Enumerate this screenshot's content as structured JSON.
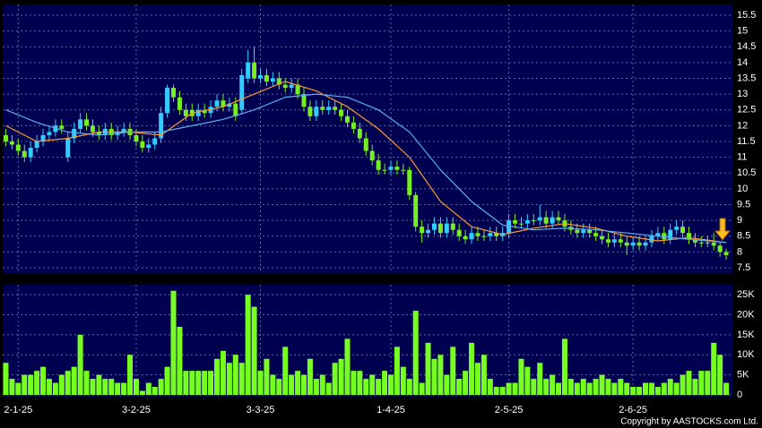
{
  "chart_data": [
    {
      "type": "candlestick",
      "open": [
        11.7,
        11.5,
        11.4,
        11.2,
        11.0,
        11.3,
        11.5,
        11.7,
        11.8,
        12.0,
        11.0,
        11.6,
        11.9,
        12.2,
        12.0,
        11.8,
        11.7,
        11.9,
        11.7,
        11.8,
        11.9,
        11.7,
        11.5,
        11.3,
        11.4,
        11.6,
        12.4,
        13.2,
        12.9,
        12.5,
        12.5,
        12.3,
        12.5,
        12.4,
        12.6,
        12.8,
        12.6,
        12.7,
        12.5,
        13.5,
        14.0,
        13.5,
        13.6,
        13.4,
        13.5,
        13.3,
        13.2,
        13.3,
        13.0,
        12.6,
        12.3,
        12.6,
        12.5,
        12.6,
        12.5,
        12.3,
        12.1,
        11.9,
        11.6,
        11.2,
        10.9,
        10.6,
        10.6,
        10.7,
        10.6,
        10.6,
        9.8,
        8.8,
        8.6,
        8.7,
        8.9,
        8.6,
        8.9,
        8.7,
        8.5,
        8.4,
        8.6,
        8.5,
        8.5,
        8.6,
        8.5,
        8.6,
        9.0,
        8.9,
        8.9,
        9.0,
        9.0,
        9.1,
        8.9,
        9.1,
        9.0,
        8.8,
        8.7,
        8.6,
        8.7,
        8.6,
        8.5,
        8.4,
        8.3,
        8.4,
        8.3,
        8.2,
        8.3,
        8.2,
        8.3,
        8.5,
        8.6,
        8.4,
        8.7,
        8.8,
        8.6,
        8.4,
        8.3,
        8.3,
        8.3,
        8.2,
        8.0
      ],
      "high": [
        11.9,
        11.7,
        11.6,
        11.4,
        11.5,
        11.7,
        11.9,
        12.0,
        12.2,
        12.2,
        11.8,
        12.1,
        12.4,
        12.4,
        12.2,
        12.0,
        12.1,
        12.1,
        12.0,
        12.1,
        12.1,
        11.9,
        11.7,
        11.6,
        11.8,
        12.6,
        13.3,
        13.3,
        13.1,
        12.7,
        12.7,
        12.7,
        12.7,
        12.8,
        13.0,
        13.0,
        12.9,
        12.9,
        13.8,
        14.4,
        14.5,
        13.8,
        13.8,
        13.7,
        13.7,
        13.5,
        13.5,
        13.5,
        13.2,
        12.8,
        12.8,
        12.8,
        12.8,
        12.8,
        12.7,
        12.5,
        12.3,
        12.1,
        11.8,
        11.4,
        11.1,
        10.8,
        10.9,
        10.9,
        10.8,
        10.7,
        9.9,
        9.0,
        8.9,
        9.1,
        9.1,
        9.1,
        9.1,
        8.9,
        8.7,
        8.8,
        8.8,
        8.7,
        8.8,
        8.8,
        8.8,
        9.2,
        9.2,
        9.1,
        9.2,
        9.2,
        9.5,
        9.3,
        9.3,
        9.3,
        9.2,
        9.0,
        8.9,
        8.9,
        8.9,
        8.8,
        8.7,
        8.6,
        8.6,
        8.6,
        8.5,
        8.5,
        8.5,
        8.5,
        8.7,
        8.8,
        8.8,
        8.9,
        9.0,
        9.0,
        8.8,
        8.6,
        8.5,
        8.5,
        8.6,
        8.3,
        8.1
      ],
      "low": [
        11.35,
        11.25,
        11.05,
        10.85,
        10.85,
        11.15,
        11.35,
        11.55,
        11.65,
        11.75,
        10.85,
        11.45,
        11.75,
        11.85,
        11.65,
        11.55,
        11.55,
        11.55,
        11.55,
        11.65,
        11.55,
        11.35,
        11.15,
        11.15,
        11.25,
        11.45,
        12.25,
        12.75,
        12.35,
        12.15,
        12.15,
        12.15,
        12.25,
        12.25,
        12.45,
        12.45,
        12.45,
        12.15,
        12.35,
        13.35,
        13.35,
        13.35,
        13.25,
        13.25,
        13.15,
        13.05,
        13.05,
        12.85,
        12.45,
        12.15,
        12.15,
        12.35,
        12.35,
        12.35,
        12.15,
        11.95,
        11.75,
        11.45,
        11.05,
        10.75,
        10.45,
        10.45,
        10.45,
        10.45,
        10.45,
        9.65,
        8.65,
        8.3,
        8.45,
        8.55,
        8.45,
        8.45,
        8.55,
        8.35,
        8.25,
        8.25,
        8.35,
        8.35,
        8.35,
        8.35,
        8.35,
        8.45,
        8.75,
        8.75,
        8.75,
        8.85,
        8.85,
        8.75,
        8.75,
        8.85,
        8.65,
        8.55,
        8.45,
        8.45,
        8.45,
        8.35,
        8.25,
        8.15,
        8.15,
        8.15,
        7.9,
        8.05,
        8.05,
        8.05,
        8.15,
        8.35,
        8.25,
        8.25,
        8.55,
        8.45,
        8.25,
        8.15,
        8.15,
        8.15,
        8.05,
        7.85,
        7.75
      ],
      "close": [
        11.5,
        11.4,
        11.2,
        11.0,
        11.3,
        11.5,
        11.7,
        11.8,
        12.0,
        11.9,
        11.6,
        11.9,
        12.2,
        12.0,
        11.8,
        11.7,
        11.9,
        11.7,
        11.8,
        11.9,
        11.7,
        11.5,
        11.3,
        11.4,
        11.6,
        12.4,
        13.2,
        12.9,
        12.5,
        12.3,
        12.3,
        12.5,
        12.4,
        12.6,
        12.8,
        12.6,
        12.7,
        12.3,
        13.6,
        14.0,
        13.5,
        13.6,
        13.4,
        13.5,
        13.3,
        13.2,
        13.3,
        13.0,
        12.6,
        12.3,
        12.6,
        12.5,
        12.6,
        12.5,
        12.3,
        12.1,
        11.9,
        11.6,
        11.2,
        10.9,
        10.6,
        10.6,
        10.7,
        10.6,
        10.6,
        9.8,
        8.8,
        8.6,
        8.7,
        8.9,
        8.6,
        8.9,
        8.7,
        8.5,
        8.4,
        8.6,
        8.5,
        8.5,
        8.6,
        8.5,
        8.6,
        9.0,
        8.9,
        8.9,
        9.0,
        9.0,
        9.1,
        8.9,
        9.1,
        9.0,
        8.8,
        8.7,
        8.6,
        8.7,
        8.6,
        8.5,
        8.4,
        8.3,
        8.4,
        8.3,
        8.2,
        8.3,
        8.2,
        8.3,
        8.5,
        8.6,
        8.4,
        8.7,
        8.8,
        8.6,
        8.4,
        8.3,
        8.3,
        8.3,
        8.2,
        8.0,
        7.9
      ],
      "up_color": "#33ccff",
      "down_color": "#77ee22",
      "lines": [
        {
          "color": "#ff9933",
          "x": [
            0,
            5,
            10,
            15,
            20,
            25,
            30,
            35,
            40,
            45,
            50,
            55,
            60,
            65,
            70,
            75,
            80,
            85,
            90,
            95,
            100,
            105,
            110,
            116
          ],
          "values": [
            12.0,
            11.5,
            11.6,
            11.8,
            11.8,
            11.7,
            12.4,
            12.6,
            13.0,
            13.4,
            13.1,
            12.6,
            11.9,
            11.0,
            9.6,
            8.8,
            8.55,
            8.75,
            8.9,
            8.75,
            8.5,
            8.35,
            8.45,
            8.3
          ]
        },
        {
          "color": "#5aaef0",
          "x": [
            0,
            5,
            10,
            15,
            20,
            25,
            30,
            35,
            40,
            45,
            50,
            55,
            60,
            65,
            70,
            75,
            80,
            85,
            90,
            95,
            100,
            105,
            110,
            116
          ],
          "values": [
            12.5,
            12.1,
            11.8,
            11.7,
            11.8,
            11.8,
            12.0,
            12.2,
            12.5,
            12.9,
            13.0,
            12.9,
            12.5,
            11.8,
            10.6,
            9.6,
            8.85,
            8.7,
            8.75,
            8.7,
            8.6,
            8.5,
            8.4,
            8.3
          ]
        }
      ],
      "xlim": [
        -0.5,
        117
      ],
      "ylim": [
        7.33,
        15.84
      ],
      "yticks": [
        7.5,
        8,
        8.5,
        9,
        9.5,
        10,
        10.5,
        11,
        11.5,
        12,
        12.5,
        13,
        13.5,
        14,
        14.5,
        15,
        15.5
      ],
      "grid": true
    },
    {
      "type": "bar",
      "values": [
        8000,
        4000,
        3000,
        5000,
        5000,
        6000,
        7000,
        4000,
        3000,
        5000,
        6000,
        7000,
        15000,
        6000,
        4000,
        5000,
        4000,
        4000,
        3000,
        3000,
        10000,
        4000,
        1000,
        3000,
        2000,
        4000,
        7000,
        26000,
        17000,
        6000,
        6000,
        6000,
        6000,
        6000,
        9000,
        11000,
        8000,
        10000,
        8000,
        25000,
        22000,
        6000,
        9000,
        5000,
        4000,
        12000,
        5000,
        6000,
        5000,
        9000,
        4000,
        5000,
        3000,
        8000,
        9000,
        14000,
        6000,
        6000,
        4000,
        5000,
        4000,
        6000,
        5000,
        12000,
        7000,
        4000,
        21000,
        3000,
        13000,
        9000,
        10000,
        5000,
        12000,
        4000,
        6000,
        13000,
        8000,
        10000,
        4000,
        2000,
        2000,
        3000,
        3000,
        9000,
        7000,
        4000,
        8000,
        4000,
        5000,
        3000,
        14000,
        4000,
        3000,
        4000,
        3000,
        4000,
        5000,
        4000,
        3000,
        4000,
        3000,
        2000,
        2000,
        3000,
        3000,
        2000,
        3000,
        4000,
        3000,
        5000,
        6000,
        4000,
        6000,
        6000,
        13000,
        10000,
        3000
      ],
      "color": "#77ff22",
      "xlim": [
        -0.5,
        117
      ],
      "ylim": [
        -450,
        27500
      ],
      "yticks": [
        {
          "value": 0,
          "label": "0"
        },
        {
          "value": 5000,
          "label": "5K"
        },
        {
          "value": 10000,
          "label": "10K"
        },
        {
          "value": 15000,
          "label": "15K"
        },
        {
          "value": 20000,
          "label": "20K"
        },
        {
          "value": 25000,
          "label": "25K"
        }
      ],
      "xticks": [
        {
          "value": 2,
          "label": "2-1-25"
        },
        {
          "value": 21,
          "label": "3-2-25"
        },
        {
          "value": 41,
          "label": "3-3-25"
        },
        {
          "value": 62,
          "label": "1-4-25"
        },
        {
          "value": 81,
          "label": "2-5-25"
        },
        {
          "value": 101,
          "label": "2-6-25"
        }
      ],
      "grid": true
    }
  ],
  "footer": "Copyright by AASTOCKS.com Ltd."
}
